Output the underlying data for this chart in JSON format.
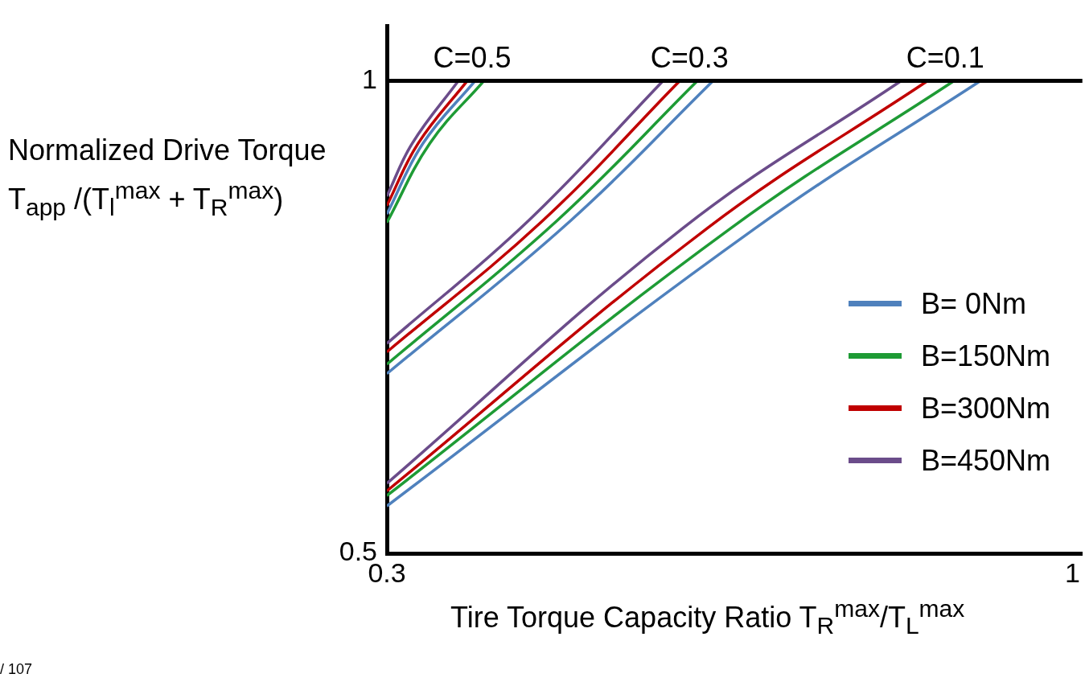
{
  "chart_data": {
    "type": "line",
    "xlabel": "Tire Torque Capacity Ratio T$_{R}$$^{max}$/T$_{L}$$^{max}$",
    "ylabel": "Normalized Drive Torque T$_{app}$ /(T$_{l}$$^{max}$ + T$_{R}$$^{max}$)",
    "xlim": [
      0.3,
      1.01
    ],
    "xticks": [
      0.3,
      1
    ],
    "ylim": [
      0.5,
      1.058
    ],
    "yticks": [
      0.5,
      1
    ],
    "grid": false,
    "legend": "right",
    "marker": "none",
    "line_style": "solid",
    "ref_lines": [
      {
        "axis": "y",
        "value": 1,
        "color": "#000000"
      }
    ],
    "annotations": [
      {
        "text": "C=0.5",
        "x": 0.387,
        "y": 1
      },
      {
        "text": "C=0.3",
        "x": 0.609,
        "y": 1
      },
      {
        "text": "C=0.1",
        "x": 0.87,
        "y": 1
      },
      "/ 107"
    ],
    "series": [
      {
        "name": "B= 0Nm",
        "color": "#4f81bd",
        "x": [
          0.3,
          0.337,
          0.39
        ],
        "values": [
          0.859,
          0.934,
          1
        ]
      },
      {
        "name": "B=150Nm",
        "color": "#1e9b35",
        "x": [
          0.3,
          0.344,
          0.399
        ],
        "values": [
          0.85,
          0.934,
          1
        ]
      },
      {
        "name": "B=300Nm",
        "color": "#c00000",
        "x": [
          0.3,
          0.332,
          0.382
        ],
        "values": [
          0.868,
          0.934,
          1
        ]
      },
      {
        "name": "B=450Nm",
        "color": "#6b4c8a",
        "x": [
          0.3,
          0.326,
          0.373
        ],
        "values": [
          0.878,
          0.934,
          1
        ]
      },
      {
        "color": "#4f81bd",
        "x": [
          0.3,
          0.4875,
          0.633
        ],
        "values": [
          0.69,
          0.852,
          1
        ]
      },
      {
        "color": "#1e9b35",
        "x": [
          0.3,
          0.4736,
          0.617
        ],
        "values": [
          0.7,
          0.852,
          1
        ]
      },
      {
        "color": "#c00000",
        "x": [
          0.3,
          0.459,
          0.599
        ],
        "values": [
          0.713,
          0.852,
          1
        ]
      },
      {
        "color": "#6b4c8a",
        "x": [
          0.3,
          0.4445,
          0.582
        ],
        "values": [
          0.722,
          0.852,
          1
        ]
      },
      {
        "color": "#4f81bd",
        "x": [
          0.3,
          0.676,
          0.906
        ],
        "values": [
          0.55,
          0.844,
          1
        ]
      },
      {
        "color": "#1e9b35",
        "x": [
          0.3,
          0.651,
          0.879
        ],
        "values": [
          0.561,
          0.844,
          1
        ]
      },
      {
        "color": "#c00000",
        "x": [
          0.3,
          0.627,
          0.852
        ],
        "values": [
          0.566,
          0.844,
          1
        ]
      },
      {
        "color": "#6b4c8a",
        "x": [
          0.3,
          0.602,
          0.825
        ],
        "values": [
          0.574,
          0.844,
          1
        ]
      }
    ]
  }
}
